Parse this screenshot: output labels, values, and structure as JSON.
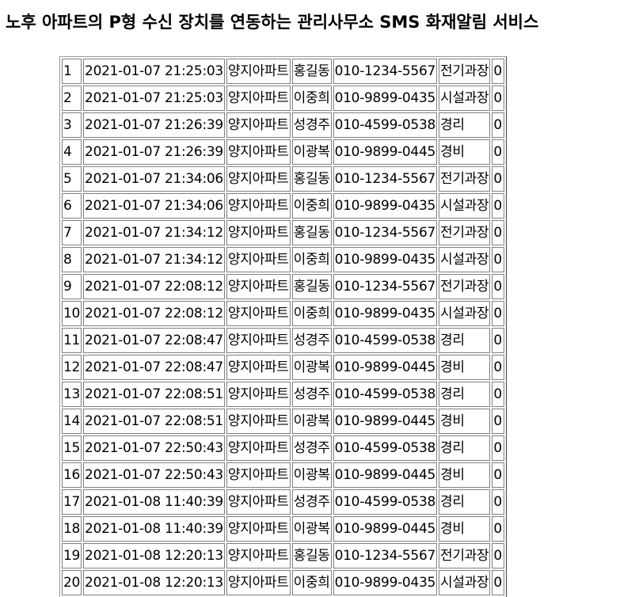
{
  "page": {
    "title": "노후 아파트의 P형 수신 장치를 연동하는 관리사무소 SMS 화재알림 서비스"
  },
  "log_table": {
    "rows": [
      [
        "1",
        "2021-01-07 21:25:03",
        "양지아파트",
        "홍길동",
        "010-1234-5567",
        "전기과장",
        "0"
      ],
      [
        "2",
        "2021-01-07 21:25:03",
        "양지아파트",
        "이중희",
        "010-9899-0435",
        "시설과장",
        "0"
      ],
      [
        "3",
        "2021-01-07 21:26:39",
        "양지아파트",
        "성경주",
        "010-4599-0538",
        "경리",
        "0"
      ],
      [
        "4",
        "2021-01-07 21:26:39",
        "양지아파트",
        "이광복",
        "010-9899-0445",
        "경비",
        "0"
      ],
      [
        "5",
        "2021-01-07 21:34:06",
        "양지아파트",
        "홍길동",
        "010-1234-5567",
        "전기과장",
        "0"
      ],
      [
        "6",
        "2021-01-07 21:34:06",
        "양지아파트",
        "이중희",
        "010-9899-0435",
        "시설과장",
        "0"
      ],
      [
        "7",
        "2021-01-07 21:34:12",
        "양지아파트",
        "홍길동",
        "010-1234-5567",
        "전기과장",
        "0"
      ],
      [
        "8",
        "2021-01-07 21:34:12",
        "양지아파트",
        "이중희",
        "010-9899-0435",
        "시설과장",
        "0"
      ],
      [
        "9",
        "2021-01-07 22:08:12",
        "양지아파트",
        "홍길동",
        "010-1234-5567",
        "전기과장",
        "0"
      ],
      [
        "10",
        "2021-01-07 22:08:12",
        "양지아파트",
        "이중희",
        "010-9899-0435",
        "시설과장",
        "0"
      ],
      [
        "11",
        "2021-01-07 22:08:47",
        "양지아파트",
        "성경주",
        "010-4599-0538",
        "경리",
        "0"
      ],
      [
        "12",
        "2021-01-07 22:08:47",
        "양지아파트",
        "이광복",
        "010-9899-0445",
        "경비",
        "0"
      ],
      [
        "13",
        "2021-01-07 22:08:51",
        "양지아파트",
        "성경주",
        "010-4599-0538",
        "경리",
        "0"
      ],
      [
        "14",
        "2021-01-07 22:08:51",
        "양지아파트",
        "이광복",
        "010-9899-0445",
        "경비",
        "0"
      ],
      [
        "15",
        "2021-01-07 22:50:43",
        "양지아파트",
        "성경주",
        "010-4599-0538",
        "경리",
        "0"
      ],
      [
        "16",
        "2021-01-07 22:50:43",
        "양지아파트",
        "이광복",
        "010-9899-0445",
        "경비",
        "0"
      ],
      [
        "17",
        "2021-01-08 11:40:39",
        "양지아파트",
        "성경주",
        "010-4599-0538",
        "경리",
        "0"
      ],
      [
        "18",
        "2021-01-08 11:40:39",
        "양지아파트",
        "이광복",
        "010-9899-0445",
        "경비",
        "0"
      ],
      [
        "19",
        "2021-01-08 12:20:13",
        "양지아파트",
        "홍길동",
        "010-1234-5567",
        "전기과장",
        "0"
      ],
      [
        "20",
        "2021-01-08 12:20:13",
        "양지아파트",
        "이중희",
        "010-9899-0435",
        "시설과장",
        "0"
      ]
    ]
  }
}
